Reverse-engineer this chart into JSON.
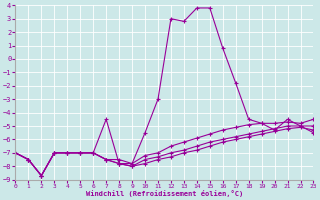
{
  "xlabel": "Windchill (Refroidissement éolien,°C)",
  "xlim": [
    0,
    23
  ],
  "ylim": [
    -9,
    4
  ],
  "yticks": [
    4,
    3,
    2,
    1,
    0,
    -1,
    -2,
    -3,
    -4,
    -5,
    -6,
    -7,
    -8,
    -9
  ],
  "xticks": [
    0,
    1,
    2,
    3,
    4,
    5,
    6,
    7,
    8,
    9,
    10,
    11,
    12,
    13,
    14,
    15,
    16,
    17,
    18,
    19,
    20,
    21,
    22,
    23
  ],
  "bg_color": "#cce8e8",
  "grid_color": "#ffffff",
  "line_color": "#990099",
  "x": [
    0,
    1,
    2,
    3,
    4,
    5,
    6,
    7,
    8,
    9,
    10,
    11,
    12,
    13,
    14,
    15,
    16,
    17,
    18,
    19,
    20,
    21,
    22,
    23
  ],
  "curves": [
    [
      -7.0,
      -7.5,
      -8.7,
      -7.0,
      -7.0,
      -7.0,
      -7.0,
      -7.5,
      -7.5,
      -7.8,
      -5.5,
      -3.0,
      3.0,
      2.8,
      3.8,
      3.8,
      0.8,
      -1.8,
      -4.5,
      -4.8,
      -5.3,
      -4.5,
      -5.0,
      -5.5
    ],
    [
      -7.0,
      -7.5,
      -8.7,
      -7.0,
      -7.0,
      -7.0,
      -7.0,
      -4.5,
      -7.8,
      -7.8,
      -7.2,
      -7.0,
      -6.5,
      -6.2,
      -5.9,
      -5.6,
      -5.3,
      -5.1,
      -4.9,
      -4.8,
      -4.8,
      -4.7,
      -4.8,
      -4.5
    ],
    [
      -7.0,
      -7.5,
      -8.7,
      -7.0,
      -7.0,
      -7.0,
      -7.0,
      -7.5,
      -7.8,
      -8.0,
      -7.5,
      -7.3,
      -7.0,
      -6.8,
      -6.5,
      -6.2,
      -6.0,
      -5.8,
      -5.6,
      -5.4,
      -5.2,
      -5.0,
      -5.0,
      -5.0
    ],
    [
      -7.0,
      -7.5,
      -8.7,
      -7.0,
      -7.0,
      -7.0,
      -7.0,
      -7.5,
      -7.8,
      -8.0,
      -7.8,
      -7.5,
      -7.3,
      -7.0,
      -6.8,
      -6.5,
      -6.2,
      -6.0,
      -5.8,
      -5.6,
      -5.4,
      -5.2,
      -5.1,
      -5.3
    ]
  ]
}
